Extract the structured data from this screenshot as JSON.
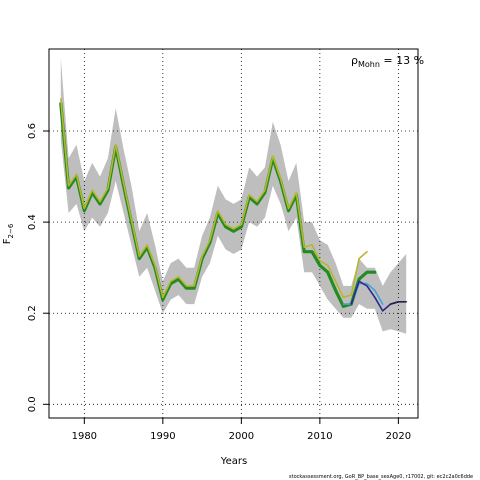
{
  "chart_data": {
    "type": "line",
    "xlabel": "Years",
    "ylabel": "F",
    "ylabel_subscript": "2−6",
    "xlim": [
      1975.5,
      2022.5
    ],
    "ylim": [
      -0.03,
      0.78
    ],
    "x_ticks": [
      1980,
      1990,
      2000,
      2010,
      2020
    ],
    "y_ticks": [
      0.0,
      0.2,
      0.4,
      0.6
    ],
    "x_tick_labels": [
      "1980",
      "1990",
      "2000",
      "2010",
      "2020"
    ],
    "y_tick_labels": [
      "0.0",
      "0.2",
      "0.4",
      "0.6"
    ],
    "grid": true,
    "mohn": {
      "symbol": "ρ",
      "subscript": "Mohn",
      "text": " = 13 %"
    },
    "band": {
      "color": "#bebebe",
      "x": [
        1977,
        1978,
        1979,
        1980,
        1981,
        1982,
        1983,
        1984,
        1985,
        1986,
        1987,
        1988,
        1989,
        1990,
        1991,
        1992,
        1993,
        1994,
        1995,
        1996,
        1997,
        1998,
        1999,
        2000,
        2001,
        2002,
        2003,
        2004,
        2005,
        2006,
        2007,
        2008,
        2009,
        2010,
        2011,
        2012,
        2013,
        2014,
        2015,
        2016,
        2017,
        2018,
        2019,
        2020,
        2021
      ],
      "upper": [
        0.76,
        0.54,
        0.57,
        0.49,
        0.53,
        0.5,
        0.54,
        0.65,
        0.56,
        0.48,
        0.38,
        0.42,
        0.35,
        0.27,
        0.31,
        0.32,
        0.3,
        0.3,
        0.37,
        0.41,
        0.48,
        0.45,
        0.44,
        0.45,
        0.52,
        0.5,
        0.52,
        0.62,
        0.57,
        0.49,
        0.53,
        0.4,
        0.4,
        0.36,
        0.35,
        0.31,
        0.26,
        0.26,
        0.32,
        0.3,
        0.3,
        0.26,
        0.29,
        0.31,
        0.33
      ],
      "lower": [
        0.58,
        0.42,
        0.44,
        0.38,
        0.41,
        0.39,
        0.42,
        0.49,
        0.42,
        0.35,
        0.28,
        0.3,
        0.25,
        0.2,
        0.23,
        0.24,
        0.22,
        0.22,
        0.28,
        0.31,
        0.37,
        0.34,
        0.33,
        0.34,
        0.4,
        0.39,
        0.41,
        0.48,
        0.44,
        0.38,
        0.41,
        0.29,
        0.29,
        0.26,
        0.23,
        0.21,
        0.19,
        0.19,
        0.22,
        0.21,
        0.21,
        0.16,
        0.165,
        0.16,
        0.155
      ]
    },
    "series": [
      {
        "color": "#228b22",
        "width": 3.2,
        "x": [
          1977,
          1978,
          1979,
          1980,
          1981,
          1982,
          1983,
          1984,
          1985,
          1986,
          1987,
          1988,
          1989,
          1990,
          1991,
          1992,
          1993,
          1994,
          1995,
          1996,
          1997,
          1998,
          1999,
          2000,
          2001,
          2002,
          2003,
          2004,
          2005,
          2006,
          2007,
          2008,
          2009,
          2010,
          2011,
          2012,
          2013,
          2014,
          2015,
          2016,
          2017
        ],
        "y": [
          0.66,
          0.475,
          0.5,
          0.425,
          0.465,
          0.44,
          0.47,
          0.565,
          0.48,
          0.4,
          0.32,
          0.345,
          0.3,
          0.23,
          0.265,
          0.275,
          0.255,
          0.255,
          0.32,
          0.355,
          0.42,
          0.39,
          0.38,
          0.39,
          0.455,
          0.44,
          0.465,
          0.54,
          0.49,
          0.425,
          0.46,
          0.335,
          0.335,
          0.305,
          0.29,
          0.25,
          0.215,
          0.22,
          0.275,
          0.29,
          0.29
        ]
      },
      {
        "color": "#b7b72a",
        "width": 1.6,
        "x": [
          1977,
          1978,
          1979,
          1980,
          1981,
          1982,
          1983,
          1984,
          1985,
          1986,
          1987,
          1988,
          1989,
          1990,
          1991,
          1992,
          1993,
          1994,
          1995,
          1996,
          1997,
          1998,
          1999,
          2000,
          2001,
          2002,
          2003,
          2004,
          2005,
          2006,
          2007,
          2008,
          2009,
          2010,
          2011,
          2012,
          2013,
          2014,
          2015,
          2016
        ],
        "y": [
          0.67,
          0.48,
          0.505,
          0.43,
          0.47,
          0.445,
          0.475,
          0.57,
          0.485,
          0.405,
          0.325,
          0.35,
          0.305,
          0.235,
          0.27,
          0.28,
          0.26,
          0.26,
          0.325,
          0.36,
          0.425,
          0.395,
          0.385,
          0.395,
          0.46,
          0.445,
          0.47,
          0.545,
          0.495,
          0.43,
          0.465,
          0.345,
          0.35,
          0.315,
          0.305,
          0.27,
          0.235,
          0.24,
          0.32,
          0.335
        ]
      },
      {
        "color": "#4aa0d8",
        "width": 1.6,
        "x": [
          2013,
          2014,
          2015,
          2016,
          2017,
          2018
        ],
        "y": [
          0.22,
          0.22,
          0.265,
          0.265,
          0.25,
          0.22
        ]
      },
      {
        "color": "#2a2a8e",
        "width": 1.6,
        "x": [
          2014,
          2015,
          2016,
          2017,
          2018,
          2019,
          2020
        ],
        "y": [
          0.22,
          0.27,
          0.26,
          0.235,
          0.205,
          0.22,
          0.225
        ]
      },
      {
        "color": "#222244",
        "width": 1.6,
        "x": [
          2019,
          2020,
          2021
        ],
        "y": [
          0.22,
          0.225,
          0.225
        ]
      }
    ]
  },
  "footer": {
    "text": "stockassessment.org,  GoR_BP_base_sexAge0,  r17002,  git: ec2c2a0c6dde"
  }
}
